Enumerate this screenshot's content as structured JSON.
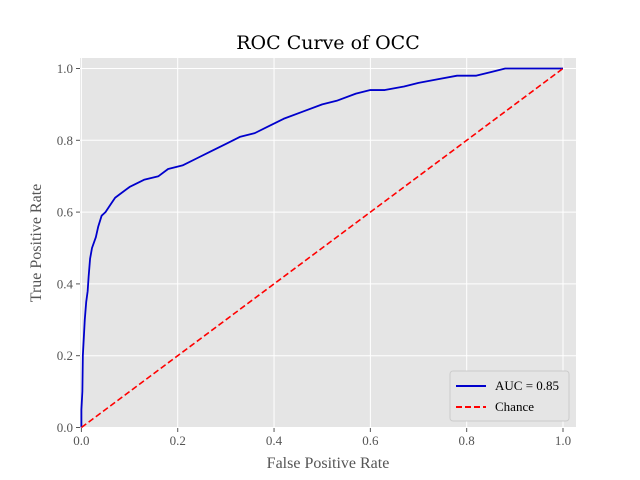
{
  "chart_data": {
    "type": "line",
    "title": "ROC Curve of OCC",
    "xlabel": "False Positive Rate",
    "ylabel": "True Positive Rate",
    "xlim": [
      0.0,
      1.0
    ],
    "ylim": [
      0.0,
      1.0
    ],
    "grid": true,
    "legend_position": "lower-right",
    "x_ticks": [
      0.0,
      0.2,
      0.4,
      0.6,
      0.8,
      1.0
    ],
    "x_tick_labels": [
      "0.0",
      "0.2",
      "0.4",
      "0.6",
      "0.8",
      "1.0"
    ],
    "y_ticks": [
      0.0,
      0.2,
      0.4,
      0.6,
      0.8,
      1.0
    ],
    "y_tick_labels": [
      "0.0",
      "0.2",
      "0.4",
      "0.6",
      "0.8",
      "1.0"
    ],
    "series": [
      {
        "name": "AUC = 0.85",
        "color": "#0000cc",
        "style": "solid",
        "points": [
          [
            0.0,
            0.0
          ],
          [
            0.0,
            0.05
          ],
          [
            0.002,
            0.1
          ],
          [
            0.003,
            0.2
          ],
          [
            0.005,
            0.25
          ],
          [
            0.007,
            0.3
          ],
          [
            0.01,
            0.35
          ],
          [
            0.013,
            0.38
          ],
          [
            0.015,
            0.42
          ],
          [
            0.018,
            0.47
          ],
          [
            0.022,
            0.5
          ],
          [
            0.03,
            0.53
          ],
          [
            0.035,
            0.56
          ],
          [
            0.042,
            0.59
          ],
          [
            0.05,
            0.6
          ],
          [
            0.06,
            0.62
          ],
          [
            0.07,
            0.64
          ],
          [
            0.08,
            0.65
          ],
          [
            0.1,
            0.67
          ],
          [
            0.13,
            0.69
          ],
          [
            0.16,
            0.7
          ],
          [
            0.18,
            0.72
          ],
          [
            0.21,
            0.73
          ],
          [
            0.24,
            0.75
          ],
          [
            0.27,
            0.77
          ],
          [
            0.3,
            0.79
          ],
          [
            0.33,
            0.81
          ],
          [
            0.36,
            0.82
          ],
          [
            0.39,
            0.84
          ],
          [
            0.42,
            0.86
          ],
          [
            0.46,
            0.88
          ],
          [
            0.5,
            0.9
          ],
          [
            0.53,
            0.91
          ],
          [
            0.57,
            0.93
          ],
          [
            0.6,
            0.94
          ],
          [
            0.63,
            0.94
          ],
          [
            0.67,
            0.95
          ],
          [
            0.7,
            0.96
          ],
          [
            0.74,
            0.97
          ],
          [
            0.78,
            0.98
          ],
          [
            0.82,
            0.98
          ],
          [
            0.85,
            0.99
          ],
          [
            0.88,
            1.0
          ],
          [
            0.95,
            1.0
          ],
          [
            0.98,
            1.0
          ],
          [
            1.0,
            1.0
          ]
        ]
      },
      {
        "name": "Chance",
        "color": "#ff0000",
        "style": "dashed",
        "points": [
          [
            0.0,
            0.0
          ],
          [
            1.0,
            1.0
          ]
        ]
      }
    ]
  }
}
